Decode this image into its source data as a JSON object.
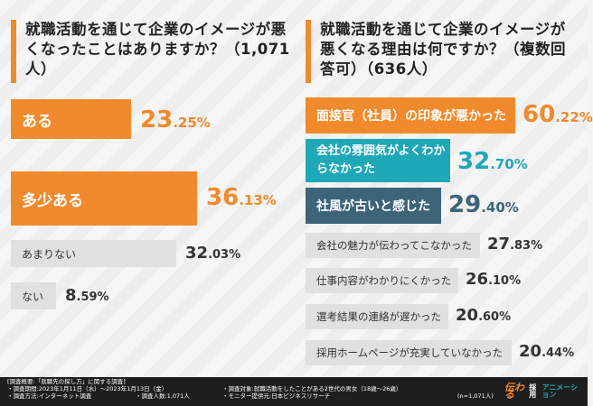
{
  "footer": {
    "overview": "[調査概要:「就職先の探し方」に関する調査]",
    "period": "・調査期間:2023年1月11日（水）〜2023年1月13日（金）",
    "method": "・調査方法:インターネット調査",
    "respondents": "・調査人数:1,071人",
    "target": "・調査対象:就職活動をしたことがある2世代の男女（18歳〜26歳）",
    "monitor": "・モニター提供元:日本ビジネスリサーチ",
    "n": "(n=1,071人)",
    "logo_mark": "伝わる",
    "logo_brand": "採用",
    "logo_sub": "アニメーション"
  },
  "colors": {
    "orange": "#f08a2c",
    "teal": "#1fa8b8",
    "slate": "#3d6478",
    "grey_bar": "#e0e0e0"
  },
  "chart_data": [
    {
      "type": "bar",
      "orientation": "horizontal",
      "title": "就職活動を通じて企業のイメージが悪くなったことはありますか？（1,071人）",
      "categories": [
        "ある",
        "多少ある",
        "あまりない",
        "ない"
      ],
      "values": [
        23.25,
        36.13,
        32.03,
        8.59
      ],
      "labels": [
        "23.25%",
        "36.13%",
        "32.03%",
        "8.59%"
      ],
      "unit": "%"
    },
    {
      "type": "bar",
      "orientation": "horizontal",
      "title": "就職活動を通じて企業のイメージが悪くなる理由は何ですか？（複数回答可）（636人）",
      "categories": [
        "面接官（社員）の印象が悪かった",
        "会社の雰囲気がよくわからなかった",
        "社風が古いと感じた",
        "会社の魅力が伝わってこなかった",
        "仕事内容がわかりにくかった",
        "選考結果の連絡が遅かった",
        "採用ホームページが充実していなかった"
      ],
      "values": [
        60.22,
        32.7,
        29.4,
        27.83,
        26.1,
        20.6,
        20.44
      ],
      "labels": [
        "60.22%",
        "32.70%",
        "29.40%",
        "27.83%",
        "26.10%",
        "20.60%",
        "20.44%"
      ],
      "unit": "%"
    }
  ]
}
